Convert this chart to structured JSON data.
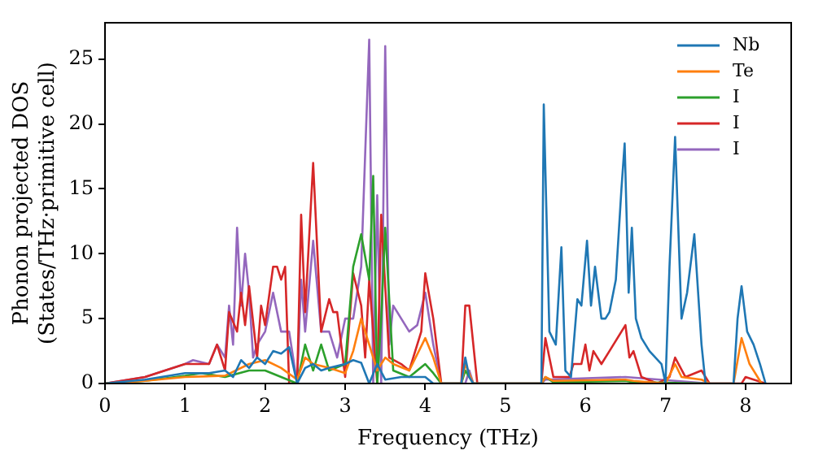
{
  "chart_data": {
    "type": "line",
    "xlabel": "Frequency (THz)",
    "ylabel": "Phonon projected DOS\n(States/THz·primitive cell)",
    "xlim": [
      0,
      8.57
    ],
    "ylim": [
      0,
      27.8
    ],
    "xticks": [
      0,
      1,
      2,
      3,
      4,
      5,
      6,
      7,
      8
    ],
    "yticks": [
      0,
      5,
      10,
      15,
      20,
      25
    ],
    "grid": false,
    "legend": "top right",
    "marker": "none",
    "line_style": "solid",
    "series": [
      {
        "name": "Nb",
        "color": "#1f77b4",
        "x": [
          0,
          0.5,
          1,
          1.3,
          1.5,
          1.6,
          1.7,
          1.8,
          1.9,
          2,
          2.1,
          2.2,
          2.3,
          2.4,
          2.5,
          2.6,
          2.7,
          2.8,
          3,
          3.1,
          3.2,
          3.3,
          3.4,
          3.5,
          3.7,
          3.9,
          4,
          4.1,
          4.45,
          4.5,
          4.55,
          4.6,
          5.45,
          5.48,
          5.55,
          5.63,
          5.7,
          5.75,
          5.82,
          5.9,
          5.95,
          6.02,
          6.07,
          6.12,
          6.2,
          6.25,
          6.3,
          6.38,
          6.45,
          6.49,
          6.54,
          6.58,
          6.63,
          6.7,
          6.8,
          6.95,
          7.0,
          7.05,
          7.12,
          7.2,
          7.27,
          7.36,
          7.45,
          7.5,
          7.85,
          7.9,
          7.95,
          8.02,
          8.1,
          8.18,
          8.25
        ],
        "values": [
          0,
          0.3,
          0.8,
          0.8,
          1,
          0.5,
          1.8,
          1.2,
          2,
          1.5,
          2.5,
          2.3,
          2.8,
          0,
          1.2,
          1.5,
          1,
          1.2,
          1.5,
          1.8,
          1.6,
          0,
          1.5,
          0.3,
          0.5,
          0.5,
          0.5,
          0,
          0,
          2,
          0.5,
          0,
          0,
          21.5,
          4,
          3,
          10.5,
          1,
          0.5,
          6.5,
          6,
          11,
          6,
          9,
          5,
          5,
          5.5,
          8,
          15,
          18.5,
          7,
          12,
          5,
          3.5,
          2.5,
          1.5,
          0,
          9,
          19,
          5,
          7,
          11.5,
          3,
          0,
          0,
          5,
          7.5,
          4,
          3,
          1.5,
          0
        ]
      },
      {
        "name": "Te",
        "color": "#ff7f0e",
        "x": [
          0,
          0.5,
          1,
          1.5,
          1.8,
          2,
          2.2,
          2.4,
          2.5,
          2.6,
          2.8,
          3,
          3.1,
          3.2,
          3.3,
          3.4,
          3.5,
          3.6,
          3.8,
          4,
          4.1,
          4.2,
          4.45,
          4.5,
          4.6,
          5.45,
          5.5,
          5.6,
          6.5,
          6.6,
          7.0,
          7.12,
          7.2,
          7.45,
          7.55,
          7.85,
          7.95,
          8.05,
          8.2
        ],
        "values": [
          0,
          0.2,
          0.5,
          0.6,
          1.5,
          1.8,
          1.2,
          0.3,
          2,
          1.5,
          1.2,
          0.8,
          2.5,
          5,
          3,
          1,
          2,
          1.5,
          1,
          3.5,
          2,
          0,
          0,
          1.5,
          0,
          0,
          0.5,
          0.2,
          0.3,
          0.2,
          0,
          1.5,
          0.5,
          0.3,
          0,
          0,
          3.5,
          1.5,
          0
        ]
      },
      {
        "name": "I",
        "color": "#2ca02c",
        "x": [
          0,
          0.5,
          1,
          1.2,
          1.5,
          1.8,
          2,
          2.2,
          2.4,
          2.5,
          2.6,
          2.7,
          2.8,
          3,
          3.1,
          3.2,
          3.3,
          3.35,
          3.4,
          3.45,
          3.5,
          3.6,
          3.8,
          4,
          4.1,
          4.2,
          4.45,
          4.5,
          4.6,
          5.45,
          5.5,
          5.6,
          6.5,
          6.6,
          7.5
        ],
        "values": [
          0,
          0.2,
          0.6,
          0.8,
          0.5,
          1,
          1,
          0.5,
          0,
          3,
          1,
          3,
          1,
          1.5,
          9,
          11.5,
          8,
          16,
          0,
          5,
          12,
          1,
          0.5,
          1.5,
          0.8,
          0,
          0,
          1,
          0,
          0,
          0.5,
          0.1,
          0.2,
          0.1,
          0
        ]
      },
      {
        "name": "I",
        "color": "#d62728",
        "x": [
          0,
          0.5,
          1,
          1.3,
          1.4,
          1.5,
          1.55,
          1.65,
          1.7,
          1.75,
          1.8,
          1.9,
          1.95,
          2,
          2.1,
          2.15,
          2.2,
          2.25,
          2.3,
          2.4,
          2.45,
          2.5,
          2.6,
          2.7,
          2.8,
          2.85,
          2.9,
          3,
          3.1,
          3.2,
          3.25,
          3.3,
          3.4,
          3.45,
          3.55,
          3.7,
          3.8,
          3.95,
          4,
          4.1,
          4.2,
          4.45,
          4.5,
          4.55,
          4.65,
          5.45,
          5.5,
          5.6,
          5.8,
          5.85,
          5.95,
          6,
          6.05,
          6.1,
          6.2,
          6.3,
          6.5,
          6.55,
          6.6,
          6.7,
          6.9,
          7.05,
          7.12,
          7.25,
          7.45,
          7.55,
          7.95,
          8.0,
          8.25
        ],
        "values": [
          0,
          0.5,
          1.5,
          1.5,
          3,
          1,
          5.5,
          4,
          7,
          4.5,
          7.5,
          2,
          6,
          4.5,
          9,
          9,
          8,
          9,
          0,
          0,
          13,
          5.5,
          17,
          4,
          6.5,
          5.5,
          5.5,
          0.5,
          8.5,
          6,
          2,
          8,
          0,
          13,
          2,
          1.5,
          1,
          4,
          8.5,
          5,
          0,
          0,
          6,
          6,
          0,
          0,
          3.5,
          0.5,
          0.5,
          1.5,
          1.5,
          3,
          1,
          2.5,
          1.5,
          2.5,
          4.5,
          2,
          2.5,
          0.5,
          0,
          0.5,
          2,
          0.5,
          1,
          0,
          0,
          0.5,
          0
        ]
      },
      {
        "name": "I",
        "color": "#9467bd",
        "x": [
          0,
          0.5,
          1,
          1.1,
          1.3,
          1.4,
          1.5,
          1.55,
          1.6,
          1.65,
          1.7,
          1.75,
          1.8,
          1.85,
          1.9,
          2,
          2.1,
          2.2,
          2.3,
          2.4,
          2.45,
          2.5,
          2.6,
          2.7,
          2.8,
          2.9,
          3,
          3.1,
          3.2,
          3.3,
          3.35,
          3.4,
          3.45,
          3.5,
          3.55,
          3.6,
          3.7,
          3.8,
          3.9,
          4,
          4.1,
          4.2,
          4.5,
          4.55,
          4.6,
          5.45,
          5.5,
          6.5,
          7.55
        ],
        "values": [
          0,
          0.5,
          1.5,
          1.8,
          1.5,
          3,
          2,
          6,
          3,
          12,
          6,
          10,
          7,
          2,
          3,
          4,
          7,
          4,
          4,
          0,
          8,
          4,
          11,
          4,
          4,
          2,
          5,
          5,
          9,
          26.5,
          0,
          14.5,
          0,
          26,
          3,
          6,
          5,
          4,
          4.5,
          7,
          3,
          0,
          0,
          1,
          0,
          0,
          0.3,
          0.5,
          0
        ]
      }
    ]
  }
}
